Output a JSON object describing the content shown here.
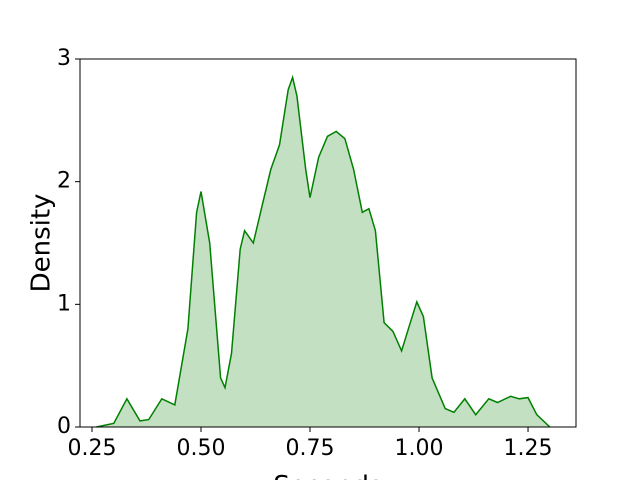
{
  "chart_data": {
    "type": "area",
    "xlabel": "Seconds",
    "ylabel": "Density",
    "color": "#008000",
    "fill_color": "#c3e0c3",
    "x": [
      0.26,
      0.3,
      0.33,
      0.36,
      0.38,
      0.41,
      0.44,
      0.47,
      0.49,
      0.5,
      0.52,
      0.545,
      0.555,
      0.57,
      0.59,
      0.6,
      0.62,
      0.64,
      0.66,
      0.68,
      0.7,
      0.71,
      0.72,
      0.74,
      0.75,
      0.77,
      0.79,
      0.81,
      0.83,
      0.85,
      0.87,
      0.885,
      0.9,
      0.92,
      0.94,
      0.96,
      0.98,
      0.995,
      1.01,
      1.03,
      1.06,
      1.08,
      1.105,
      1.13,
      1.16,
      1.18,
      1.21,
      1.23,
      1.25,
      1.27,
      1.3
    ],
    "values": [
      0,
      0.03,
      0.23,
      0.05,
      0.06,
      0.23,
      0.18,
      0.8,
      1.75,
      1.92,
      1.5,
      0.4,
      0.32,
      0.6,
      1.45,
      1.6,
      1.5,
      1.8,
      2.1,
      2.3,
      2.75,
      2.85,
      2.7,
      2.1,
      1.87,
      2.2,
      2.37,
      2.41,
      2.35,
      2.1,
      1.75,
      1.78,
      1.6,
      0.85,
      0.78,
      0.62,
      0.85,
      1.02,
      0.9,
      0.4,
      0.15,
      0.12,
      0.23,
      0.1,
      0.23,
      0.2,
      0.25,
      0.23,
      0.24,
      0.1,
      0
    ],
    "xlim": [
      0.2225,
      1.36
    ],
    "ylim": [
      0,
      3
    ],
    "xticks": [
      {
        "value": 0.25,
        "label": "0.25"
      },
      {
        "value": 0.5,
        "label": "0.50"
      },
      {
        "value": 0.75,
        "label": "0.75"
      },
      {
        "value": 1.0,
        "label": "1.00"
      },
      {
        "value": 1.25,
        "label": "1.25"
      }
    ],
    "yticks": [
      0,
      1,
      2,
      3
    ]
  }
}
